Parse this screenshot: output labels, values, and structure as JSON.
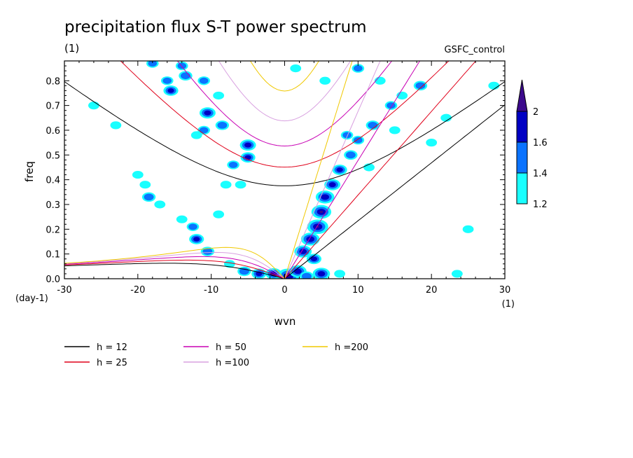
{
  "chart_data": {
    "type": "heatmap",
    "title": "precipitation flux S-T power spectrum",
    "units_label": "(1)",
    "case_label": "GSFC_control",
    "xlabel": "wvn",
    "ylabel": "freq",
    "x_unit_label": "(1)",
    "y_unit_label": "(day-1)",
    "xlim": [
      -30,
      30
    ],
    "ylim": [
      0,
      0.88
    ],
    "x_ticks": [
      -30,
      -20,
      -10,
      0,
      10,
      20,
      30
    ],
    "x_tick_labels": [
      "-30",
      "-20",
      "-10",
      "0",
      "10",
      "20",
      "30"
    ],
    "y_ticks": [
      0,
      0.1,
      0.2,
      0.3,
      0.4,
      0.5,
      0.6,
      0.7,
      0.8
    ],
    "y_tick_labels": [
      "0.0",
      "0.1",
      "0.2",
      "0.3",
      "0.4",
      "0.5",
      "0.6",
      "0.7",
      "0.8"
    ],
    "colorbar": {
      "levels": [
        1.2,
        1.4,
        1.6,
        2
      ],
      "labels": [
        "1.2",
        "1.4",
        "1.6",
        "2"
      ],
      "colors": [
        "#19ffff",
        "#0a73ff",
        "#0000c3",
        "#3c0a8c"
      ]
    },
    "dispersion_curves": [
      {
        "name": "h = 12",
        "h": 12,
        "color": "#000000"
      },
      {
        "name": "h = 25",
        "h": 25,
        "color": "#e0001a"
      },
      {
        "name": "h = 50",
        "h": 50,
        "color": "#c800b4"
      },
      {
        "name": "h =100",
        "h": 100,
        "color": "#d8a0e0"
      },
      {
        "name": "h =200",
        "h": 200,
        "color": "#f0c800"
      }
    ],
    "power_blobs": [
      {
        "x": 0.5,
        "y": 0.01,
        "v": 2.2
      },
      {
        "x": 1.8,
        "y": 0.03,
        "v": 1.8
      },
      {
        "x": -1.5,
        "y": 0.02,
        "v": 1.7
      },
      {
        "x": -3.5,
        "y": 0.02,
        "v": 1.6
      },
      {
        "x": -5.5,
        "y": 0.03,
        "v": 1.5
      },
      {
        "x": 5.0,
        "y": 0.02,
        "v": 1.8
      },
      {
        "x": 3.0,
        "y": 0.01,
        "v": 1.5
      },
      {
        "x": 7.5,
        "y": 0.02,
        "v": 1.3
      },
      {
        "x": 23.5,
        "y": 0.02,
        "v": 1.3
      },
      {
        "x": -7.5,
        "y": 0.06,
        "v": 1.3
      },
      {
        "x": -10.5,
        "y": 0.11,
        "v": 1.5
      },
      {
        "x": -12.0,
        "y": 0.16,
        "v": 1.6
      },
      {
        "x": -12.5,
        "y": 0.21,
        "v": 1.4
      },
      {
        "x": -14.0,
        "y": 0.24,
        "v": 1.3
      },
      {
        "x": -9.0,
        "y": 0.26,
        "v": 1.3
      },
      {
        "x": 2.5,
        "y": 0.11,
        "v": 1.8
      },
      {
        "x": 3.5,
        "y": 0.16,
        "v": 1.9
      },
      {
        "x": 4.5,
        "y": 0.21,
        "v": 2.1
      },
      {
        "x": 5.0,
        "y": 0.27,
        "v": 2.0
      },
      {
        "x": 5.5,
        "y": 0.33,
        "v": 1.9
      },
      {
        "x": 6.5,
        "y": 0.38,
        "v": 1.7
      },
      {
        "x": 7.5,
        "y": 0.44,
        "v": 1.6
      },
      {
        "x": 9.0,
        "y": 0.5,
        "v": 1.5
      },
      {
        "x": 10.0,
        "y": 0.56,
        "v": 1.4
      },
      {
        "x": 12.0,
        "y": 0.62,
        "v": 1.5
      },
      {
        "x": 14.5,
        "y": 0.7,
        "v": 1.4
      },
      {
        "x": 18.5,
        "y": 0.78,
        "v": 1.5
      },
      {
        "x": 16.0,
        "y": 0.74,
        "v": 1.3
      },
      {
        "x": 4.0,
        "y": 0.08,
        "v": 1.6
      },
      {
        "x": -18.5,
        "y": 0.33,
        "v": 1.5
      },
      {
        "x": -19.0,
        "y": 0.38,
        "v": 1.3
      },
      {
        "x": -20.0,
        "y": 0.42,
        "v": 1.3
      },
      {
        "x": -17.0,
        "y": 0.3,
        "v": 1.3
      },
      {
        "x": -5.0,
        "y": 0.54,
        "v": 1.7
      },
      {
        "x": -5.0,
        "y": 0.49,
        "v": 1.6
      },
      {
        "x": -7.0,
        "y": 0.46,
        "v": 1.4
      },
      {
        "x": -10.5,
        "y": 0.67,
        "v": 1.7
      },
      {
        "x": -8.5,
        "y": 0.62,
        "v": 1.5
      },
      {
        "x": -11.0,
        "y": 0.6,
        "v": 1.4
      },
      {
        "x": -12.0,
        "y": 0.58,
        "v": 1.3
      },
      {
        "x": -15.5,
        "y": 0.76,
        "v": 1.6
      },
      {
        "x": -16.0,
        "y": 0.8,
        "v": 1.4
      },
      {
        "x": -13.5,
        "y": 0.82,
        "v": 1.5
      },
      {
        "x": -11.0,
        "y": 0.8,
        "v": 1.4
      },
      {
        "x": -14.0,
        "y": 0.86,
        "v": 1.4
      },
      {
        "x": -18.0,
        "y": 0.87,
        "v": 1.4
      },
      {
        "x": -9.0,
        "y": 0.74,
        "v": 1.3
      },
      {
        "x": -23.0,
        "y": 0.62,
        "v": 1.3
      },
      {
        "x": -26.0,
        "y": 0.7,
        "v": 1.3
      },
      {
        "x": -8.0,
        "y": 0.38,
        "v": 1.3
      },
      {
        "x": -6.0,
        "y": 0.38,
        "v": 1.3
      },
      {
        "x": 1.5,
        "y": 0.85,
        "v": 1.3
      },
      {
        "x": 5.5,
        "y": 0.8,
        "v": 1.3
      },
      {
        "x": 10.0,
        "y": 0.85,
        "v": 1.4
      },
      {
        "x": 13.0,
        "y": 0.8,
        "v": 1.3
      },
      {
        "x": 22.0,
        "y": 0.65,
        "v": 1.3
      },
      {
        "x": 20.0,
        "y": 0.55,
        "v": 1.3
      },
      {
        "x": 8.5,
        "y": 0.58,
        "v": 1.4
      },
      {
        "x": 11.5,
        "y": 0.45,
        "v": 1.3
      },
      {
        "x": 25.0,
        "y": 0.2,
        "v": 1.3
      },
      {
        "x": 15.0,
        "y": 0.6,
        "v": 1.3
      },
      {
        "x": 28.5,
        "y": 0.78,
        "v": 1.3
      }
    ]
  }
}
